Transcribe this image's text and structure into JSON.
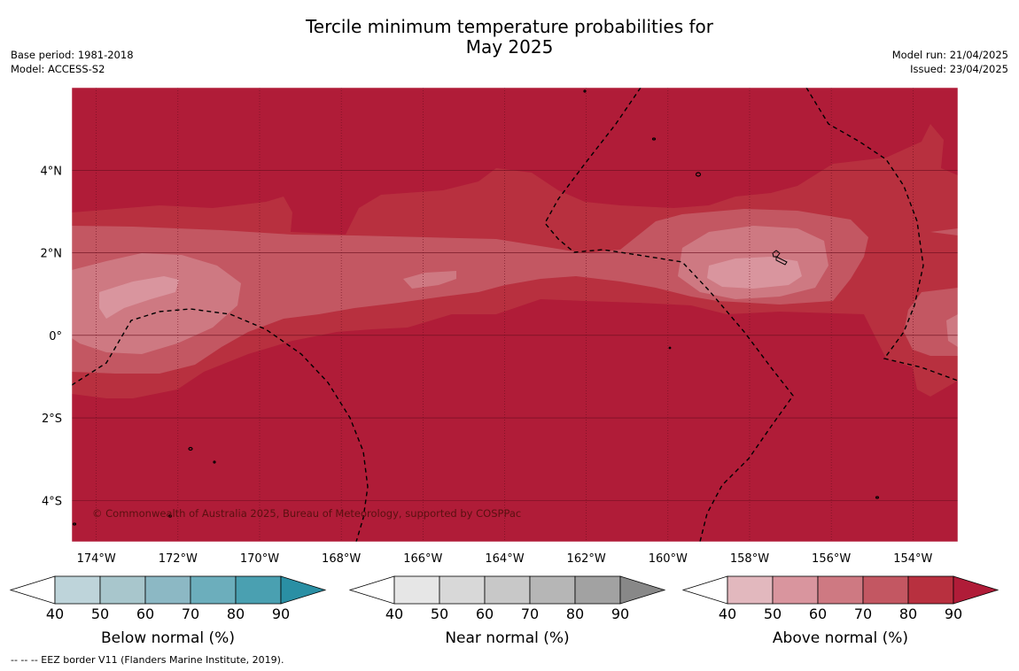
{
  "title": {
    "line1": "Tercile minimum temperature probabilities for",
    "line2": "May 2025"
  },
  "meta_left": {
    "base_period": "Base period: 1981-2018",
    "model": "Model: ACCESS-S2"
  },
  "meta_right": {
    "model_run": "Model run: 21/04/2025",
    "issued": "Issued: 23/04/2025"
  },
  "map": {
    "lon_range": [
      -174.6,
      -152.9
    ],
    "lat_range": [
      -5.0,
      6.0
    ],
    "x_ticks": [
      "174°W",
      "172°W",
      "170°W",
      "168°W",
      "166°W",
      "164°W",
      "162°W",
      "160°W",
      "158°W",
      "156°W",
      "154°W"
    ],
    "x_tick_values": [
      -174,
      -172,
      -170,
      -168,
      -166,
      -164,
      -162,
      -160,
      -158,
      -156,
      -154
    ],
    "y_ticks": [
      "4°N",
      "2°N",
      "0°",
      "2°S",
      "4°S"
    ],
    "y_tick_values": [
      4,
      2,
      0,
      -2,
      -4
    ],
    "grid": true,
    "credit": "© Commonwealth of Australia 2025, Bureau of Meteorology, supported by COSPPac",
    "dominant_category": "Above normal",
    "dominant_probability_percent": ">80"
  },
  "colorbars": [
    {
      "title": "Below normal (%)",
      "ticks": [
        "40",
        "50",
        "60",
        "70",
        "80",
        "90"
      ],
      "colors": [
        "#ffffff",
        "#bed4da",
        "#a8c6cc",
        "#8cb8c4",
        "#6caebc",
        "#4aa0b1",
        "#2a8fa4"
      ]
    },
    {
      "title": "Near normal (%)",
      "ticks": [
        "40",
        "50",
        "60",
        "70",
        "80",
        "90"
      ],
      "colors": [
        "#ffffff",
        "#e6e6e6",
        "#d8d8d8",
        "#c8c8c8",
        "#b6b6b6",
        "#a2a2a2",
        "#888888"
      ]
    },
    {
      "title": "Above normal (%)",
      "ticks": [
        "40",
        "50",
        "60",
        "70",
        "80",
        "90"
      ],
      "colors": [
        "#ffffff",
        "#e2b8be",
        "#d9959e",
        "#ce7982",
        "#c35762",
        "#b8303f",
        "#b01c38"
      ]
    }
  ],
  "footnote": "--  --  -- EEZ border V11 (Flanders Marine Institute, 2019)."
}
